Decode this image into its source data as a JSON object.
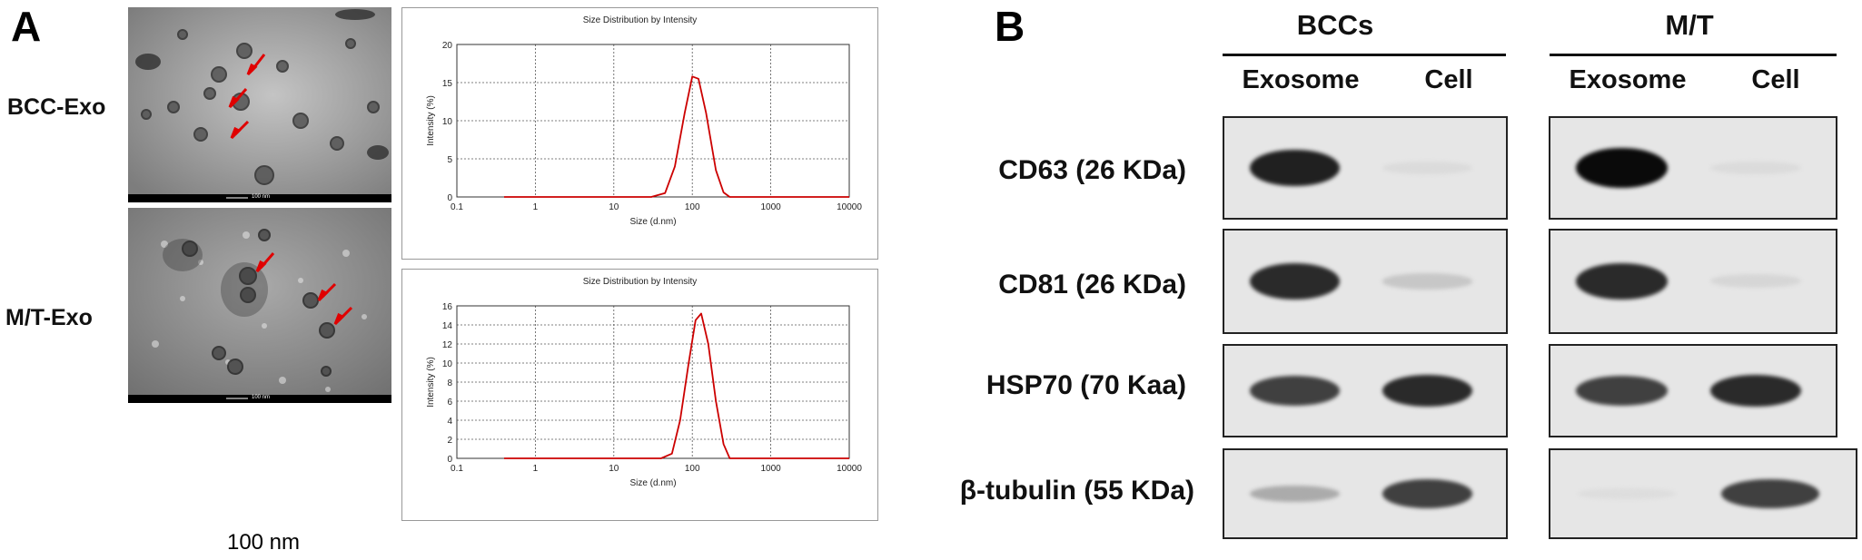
{
  "panel_a": {
    "letter": "A",
    "rows": [
      {
        "label": "BCC-Exo",
        "scale_text": "100 nm",
        "chart": {
          "title": "Size Distribution by Intensity",
          "xlabel": "Size (d.nm)",
          "ylabel": "Intensity (%)"
        }
      },
      {
        "label": "M/T-Exo",
        "scale_text": "100 nm",
        "chart": {
          "title": "Size Distribution by Intensity",
          "xlabel": "Size (d.nm)",
          "ylabel": "Intensity (%)"
        }
      }
    ],
    "scale_caption": "100 nm"
  },
  "chart_data": [
    {
      "type": "line",
      "title": "Size Distribution by Intensity",
      "xlabel": "Size (d.nm)",
      "ylabel": "Intensity (%)",
      "x_scale": "log",
      "xlim": [
        0.1,
        10000
      ],
      "ylim": [
        0,
        20
      ],
      "x_ticks": [
        0.1,
        1,
        10,
        100,
        1000,
        10000
      ],
      "y_ticks": [
        0,
        5,
        10,
        15,
        20
      ],
      "grid": true,
      "series": [
        {
          "color": "#cc0000",
          "x": [
            0.4,
            30,
            45,
            60,
            80,
            100,
            120,
            150,
            200,
            250,
            300,
            10000
          ],
          "y": [
            0,
            0,
            0.5,
            4,
            11,
            15.8,
            15.5,
            11,
            3.5,
            0.6,
            0,
            0
          ]
        }
      ]
    },
    {
      "type": "line",
      "title": "Size Distribution by Intensity",
      "xlabel": "Size (d.nm)",
      "ylabel": "Intensity (%)",
      "x_scale": "log",
      "xlim": [
        0.1,
        10000
      ],
      "ylim": [
        0,
        16
      ],
      "x_ticks": [
        0.1,
        1,
        10,
        100,
        1000,
        10000
      ],
      "y_ticks": [
        0,
        2,
        4,
        6,
        8,
        10,
        12,
        14,
        16
      ],
      "grid": true,
      "series": [
        {
          "color": "#cc0000",
          "x": [
            0.4,
            40,
            55,
            70,
            90,
            110,
            130,
            160,
            200,
            250,
            300,
            10000
          ],
          "y": [
            0,
            0,
            0.5,
            4,
            10,
            14.5,
            15.2,
            12,
            6,
            1.5,
            0,
            0
          ]
        }
      ]
    }
  ],
  "panel_b": {
    "letter": "B",
    "groups": [
      {
        "title": "BCCs",
        "columns": [
          "Exosome",
          "Cell"
        ]
      },
      {
        "title": "M/T",
        "columns": [
          "Exosome",
          "Cell"
        ]
      }
    ],
    "proteins": [
      {
        "label": "CD63 (26 KDa)",
        "bcc": [
          0.9,
          0.03
        ],
        "mt": [
          1.0,
          0.03
        ]
      },
      {
        "label": "CD81 (26 KDa)",
        "bcc": [
          0.85,
          0.12
        ],
        "mt": [
          0.85,
          0.05
        ]
      },
      {
        "label": "HSP70 (70 Kaa)",
        "bcc": [
          0.75,
          0.85
        ],
        "mt": [
          0.75,
          0.85
        ]
      },
      {
        "label": "β-tubulin (55 KDa)",
        "bcc": [
          0.25,
          0.75
        ],
        "mt": [
          0.02,
          0.75
        ]
      }
    ]
  }
}
